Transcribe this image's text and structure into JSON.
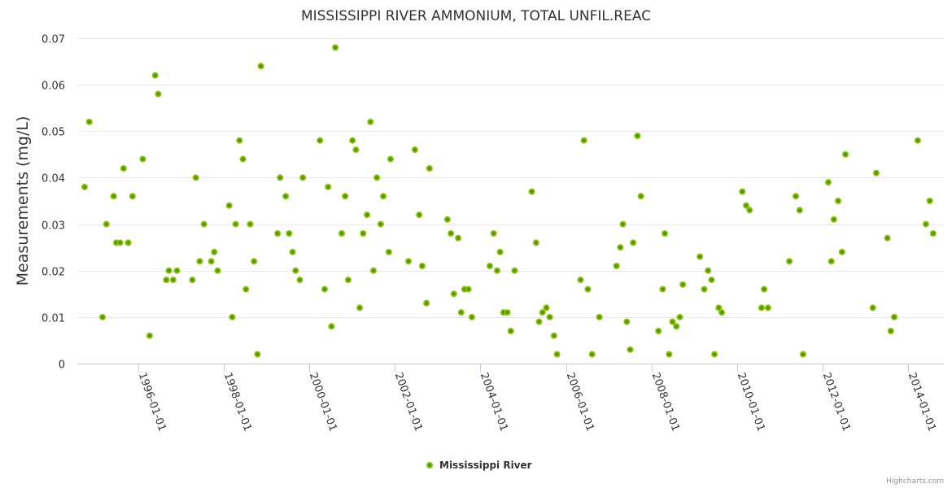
{
  "chart_data": {
    "type": "scatter",
    "title": "MISSISSIPPI RIVER AMMONIUM, TOTAL UNFIL.REAC",
    "xlabel": "",
    "ylabel": "Measurements (mg/L)",
    "xlim": [
      1994.58,
      2014.83
    ],
    "ylim": [
      0,
      0.07
    ],
    "yticks": [
      0,
      0.01,
      0.02,
      0.03,
      0.04,
      0.05,
      0.06,
      0.07
    ],
    "ytick_labels": [
      "0",
      "0.01",
      "0.02",
      "0.03",
      "0.04",
      "0.05",
      "0.06",
      "0.07"
    ],
    "xticks": [
      1996,
      1998,
      2000,
      2002,
      2004,
      2006,
      2008,
      2010,
      2012,
      2014
    ],
    "xtick_labels": [
      "1996-01-01",
      "1998-01-01",
      "2000-01-01",
      "2002-01-01",
      "2004-01-01",
      "2006-01-01",
      "2008-01-01",
      "2010-01-01",
      "2012-01-01",
      "2014-01-01"
    ],
    "grid": "horizontal",
    "legend_position": "bottom-center",
    "series": [
      {
        "name": "Mississippi River",
        "color": "#8cbf0a",
        "center_color": "#4a9600",
        "points": [
          [
            1994.75,
            0.038
          ],
          [
            1994.86,
            0.052
          ],
          [
            1995.17,
            0.01
          ],
          [
            1995.26,
            0.03
          ],
          [
            1995.43,
            0.036
          ],
          [
            1995.49,
            0.026
          ],
          [
            1995.58,
            0.026
          ],
          [
            1995.66,
            0.042
          ],
          [
            1995.77,
            0.026
          ],
          [
            1995.87,
            0.036
          ],
          [
            1996.11,
            0.044
          ],
          [
            1996.27,
            0.006
          ],
          [
            1996.4,
            0.062
          ],
          [
            1996.47,
            0.058
          ],
          [
            1996.66,
            0.018
          ],
          [
            1996.72,
            0.02
          ],
          [
            1996.82,
            0.018
          ],
          [
            1996.91,
            0.02
          ],
          [
            1997.27,
            0.018
          ],
          [
            1997.35,
            0.04
          ],
          [
            1997.44,
            0.022
          ],
          [
            1997.54,
            0.03
          ],
          [
            1997.71,
            0.022
          ],
          [
            1997.78,
            0.024
          ],
          [
            1997.86,
            0.02
          ],
          [
            1998.13,
            0.034
          ],
          [
            1998.2,
            0.01
          ],
          [
            1998.28,
            0.03
          ],
          [
            1998.37,
            0.048
          ],
          [
            1998.45,
            0.044
          ],
          [
            1998.52,
            0.016
          ],
          [
            1998.62,
            0.03
          ],
          [
            1998.71,
            0.022
          ],
          [
            1998.79,
            0.002
          ],
          [
            1998.87,
            0.064
          ],
          [
            1999.26,
            0.028
          ],
          [
            1999.32,
            0.04
          ],
          [
            1999.45,
            0.036
          ],
          [
            1999.53,
            0.028
          ],
          [
            1999.61,
            0.024
          ],
          [
            1999.68,
            0.02
          ],
          [
            1999.78,
            0.018
          ],
          [
            1999.85,
            0.04
          ],
          [
            2000.25,
            0.048
          ],
          [
            2000.36,
            0.016
          ],
          [
            2000.44,
            0.038
          ],
          [
            2000.52,
            0.008
          ],
          [
            2000.61,
            0.068
          ],
          [
            2000.76,
            0.028
          ],
          [
            2000.84,
            0.036
          ],
          [
            2000.91,
            0.018
          ],
          [
            2001.01,
            0.048
          ],
          [
            2001.09,
            0.046
          ],
          [
            2001.18,
            0.012
          ],
          [
            2001.26,
            0.028
          ],
          [
            2001.35,
            0.032
          ],
          [
            2001.43,
            0.052
          ],
          [
            2001.5,
            0.02
          ],
          [
            2001.58,
            0.04
          ],
          [
            2001.67,
            0.03
          ],
          [
            2001.73,
            0.036
          ],
          [
            2001.86,
            0.024
          ],
          [
            2001.9,
            0.044
          ],
          [
            2002.32,
            0.022
          ],
          [
            2002.47,
            0.046
          ],
          [
            2002.57,
            0.032
          ],
          [
            2002.64,
            0.021
          ],
          [
            2002.74,
            0.013
          ],
          [
            2002.81,
            0.042
          ],
          [
            2003.23,
            0.031
          ],
          [
            2003.31,
            0.028
          ],
          [
            2003.38,
            0.015
          ],
          [
            2003.48,
            0.027
          ],
          [
            2003.55,
            0.011
          ],
          [
            2003.63,
            0.016
          ],
          [
            2003.72,
            0.016
          ],
          [
            2003.8,
            0.01
          ],
          [
            2004.22,
            0.021
          ],
          [
            2004.31,
            0.028
          ],
          [
            2004.39,
            0.02
          ],
          [
            2004.46,
            0.024
          ],
          [
            2004.54,
            0.011
          ],
          [
            2004.63,
            0.011
          ],
          [
            2004.71,
            0.007
          ],
          [
            2004.8,
            0.02
          ],
          [
            2005.2,
            0.037
          ],
          [
            2005.3,
            0.026
          ],
          [
            2005.37,
            0.009
          ],
          [
            2005.45,
            0.011
          ],
          [
            2005.54,
            0.012
          ],
          [
            2005.62,
            0.01
          ],
          [
            2005.72,
            0.006
          ],
          [
            2005.79,
            0.002
          ],
          [
            2006.34,
            0.018
          ],
          [
            2006.42,
            0.048
          ],
          [
            2006.51,
            0.016
          ],
          [
            2006.61,
            0.002
          ],
          [
            2006.78,
            0.01
          ],
          [
            2007.18,
            0.021
          ],
          [
            2007.27,
            0.025
          ],
          [
            2007.33,
            0.03
          ],
          [
            2007.42,
            0.009
          ],
          [
            2007.5,
            0.003
          ],
          [
            2007.57,
            0.026
          ],
          [
            2007.67,
            0.049
          ],
          [
            2007.75,
            0.036
          ],
          [
            2008.16,
            0.007
          ],
          [
            2008.26,
            0.016
          ],
          [
            2008.31,
            0.028
          ],
          [
            2008.41,
            0.002
          ],
          [
            2008.49,
            0.009
          ],
          [
            2008.58,
            0.008
          ],
          [
            2008.66,
            0.01
          ],
          [
            2008.73,
            0.017
          ],
          [
            2009.13,
            0.023
          ],
          [
            2009.23,
            0.016
          ],
          [
            2009.32,
            0.02
          ],
          [
            2009.4,
            0.018
          ],
          [
            2009.47,
            0.002
          ],
          [
            2009.57,
            0.012
          ],
          [
            2009.64,
            0.011
          ],
          [
            2010.12,
            0.037
          ],
          [
            2010.21,
            0.034
          ],
          [
            2010.29,
            0.033
          ],
          [
            2010.57,
            0.012
          ],
          [
            2010.63,
            0.016
          ],
          [
            2010.72,
            0.012
          ],
          [
            2011.22,
            0.022
          ],
          [
            2011.37,
            0.036
          ],
          [
            2011.46,
            0.033
          ],
          [
            2011.54,
            0.002
          ],
          [
            2012.13,
            0.039
          ],
          [
            2012.2,
            0.022
          ],
          [
            2012.26,
            0.031
          ],
          [
            2012.36,
            0.035
          ],
          [
            2012.45,
            0.024
          ],
          [
            2012.53,
            0.045
          ],
          [
            2013.17,
            0.012
          ],
          [
            2013.25,
            0.041
          ],
          [
            2013.51,
            0.027
          ],
          [
            2013.59,
            0.007
          ],
          [
            2013.67,
            0.01
          ],
          [
            2014.22,
            0.048
          ],
          [
            2014.41,
            0.03
          ],
          [
            2014.5,
            0.035
          ],
          [
            2014.58,
            0.028
          ]
        ]
      }
    ],
    "credits": "Highcharts.com"
  }
}
